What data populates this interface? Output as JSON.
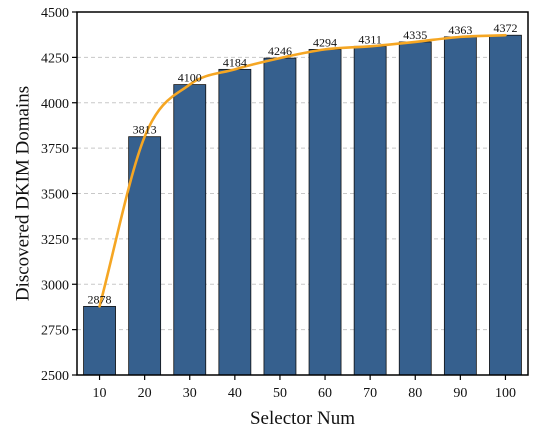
{
  "chart_data": {
    "type": "bar",
    "title": "",
    "xlabel": "Selector Num",
    "ylabel": "Discovered DKIM Domains",
    "categories": [
      "10",
      "20",
      "30",
      "40",
      "50",
      "60",
      "70",
      "80",
      "90",
      "100"
    ],
    "values": [
      2878,
      3813,
      4100,
      4184,
      4246,
      4294,
      4311,
      4335,
      4363,
      4372
    ],
    "data_labels": [
      "2878",
      "3813",
      "4100",
      "4184",
      "4246",
      "4294",
      "4311",
      "4335",
      "4363",
      "4372"
    ],
    "ylim": [
      2500,
      4500
    ],
    "yticks": [
      2500,
      2750,
      3000,
      3250,
      3500,
      3750,
      4000,
      4250,
      4500
    ],
    "ytick_labels": [
      "2500",
      "2750",
      "3000",
      "3250",
      "3500",
      "3750",
      "4000",
      "4250",
      "4500"
    ],
    "grid": true,
    "grid_axis": "y",
    "overlay": "smooth line through bar tops",
    "colors": {
      "bar_fill": "#36608e",
      "bar_edge": "#111111",
      "line": "#f5a623",
      "grid": "#c8c8c8",
      "axis": "#000000"
    }
  }
}
